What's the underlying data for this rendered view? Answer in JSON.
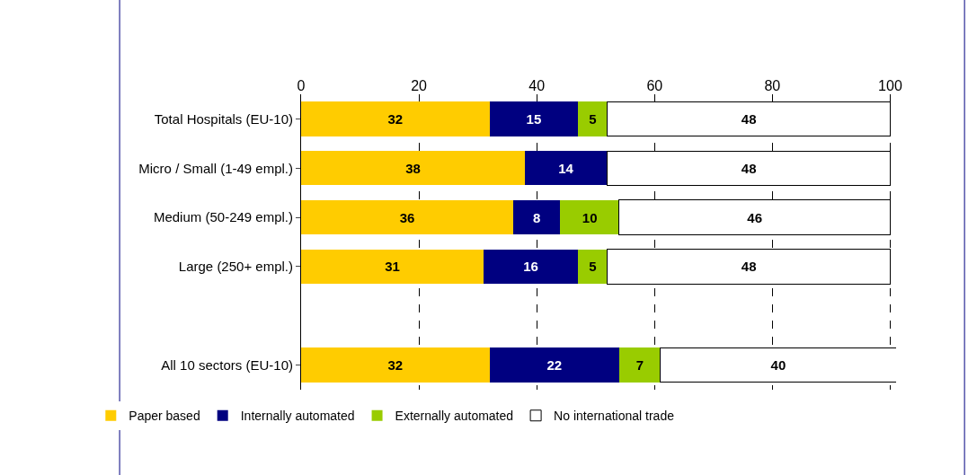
{
  "chart_data": {
    "type": "bar",
    "orientation": "horizontal",
    "stacked": true,
    "data_labels": true,
    "categories": [
      "Total Hospitals (EU-10)",
      "Micro / Small (1-49 empl.)",
      "Medium (50-249 empl.)",
      "Large (250+ empl.)",
      null,
      "All 10 sectors (EU-10)"
    ],
    "series": [
      {
        "name": "Paper based",
        "color": "#ffcc00",
        "values": [
          32,
          38,
          36,
          31,
          null,
          32
        ]
      },
      {
        "name": "Internally automated",
        "color": "#000080",
        "values": [
          15,
          14,
          8,
          16,
          null,
          22
        ]
      },
      {
        "name": "Externally automated",
        "color": "#99cc00",
        "values": [
          5,
          null,
          10,
          5,
          null,
          7
        ]
      },
      {
        "name": "No international trade",
        "color": "#ffffff",
        "values": [
          48,
          48,
          46,
          48,
          null,
          40
        ]
      }
    ],
    "xlim": [
      0,
      101
    ],
    "xticks": [
      0,
      20,
      40,
      60,
      80,
      100
    ],
    "grid": "x",
    "legend": "bottom"
  }
}
